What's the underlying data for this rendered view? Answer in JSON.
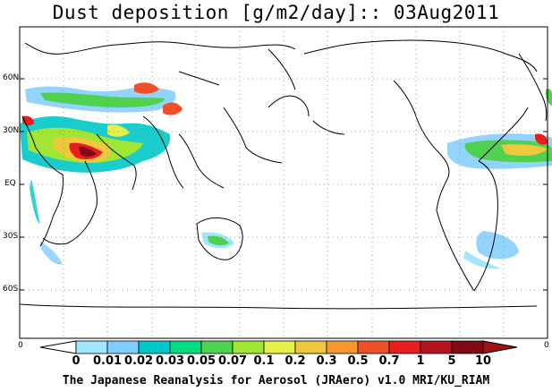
{
  "title": "Dust deposition [g/m2/day]:: 03Aug2011",
  "lat_labels": [
    "60N",
    "30N",
    "EQ",
    "30S",
    "60S"
  ],
  "edge_labels": {
    "left": "0",
    "right": "0"
  },
  "colorbar": {
    "labels": [
      "0",
      "0.01",
      "0.02",
      "0.03",
      "0.05",
      "0.07",
      "0.1",
      "0.2",
      "0.3",
      "0.5",
      "0.7",
      "1",
      "5",
      "10"
    ],
    "colors": [
      "#ffffff",
      "#a0e6ff",
      "#80cdff",
      "#00c8c8",
      "#00dc82",
      "#50d250",
      "#a0e632",
      "#e6f04a",
      "#f0c83c",
      "#fa9632",
      "#f05028",
      "#e61e1e",
      "#b4141e",
      "#820a14"
    ],
    "under_color": "#ffffff",
    "over_color": "#a01414"
  },
  "credit": "The Japanese Reanalysis for Aerosol (JRAero) v1.0 MRI/KU_RIAM"
}
